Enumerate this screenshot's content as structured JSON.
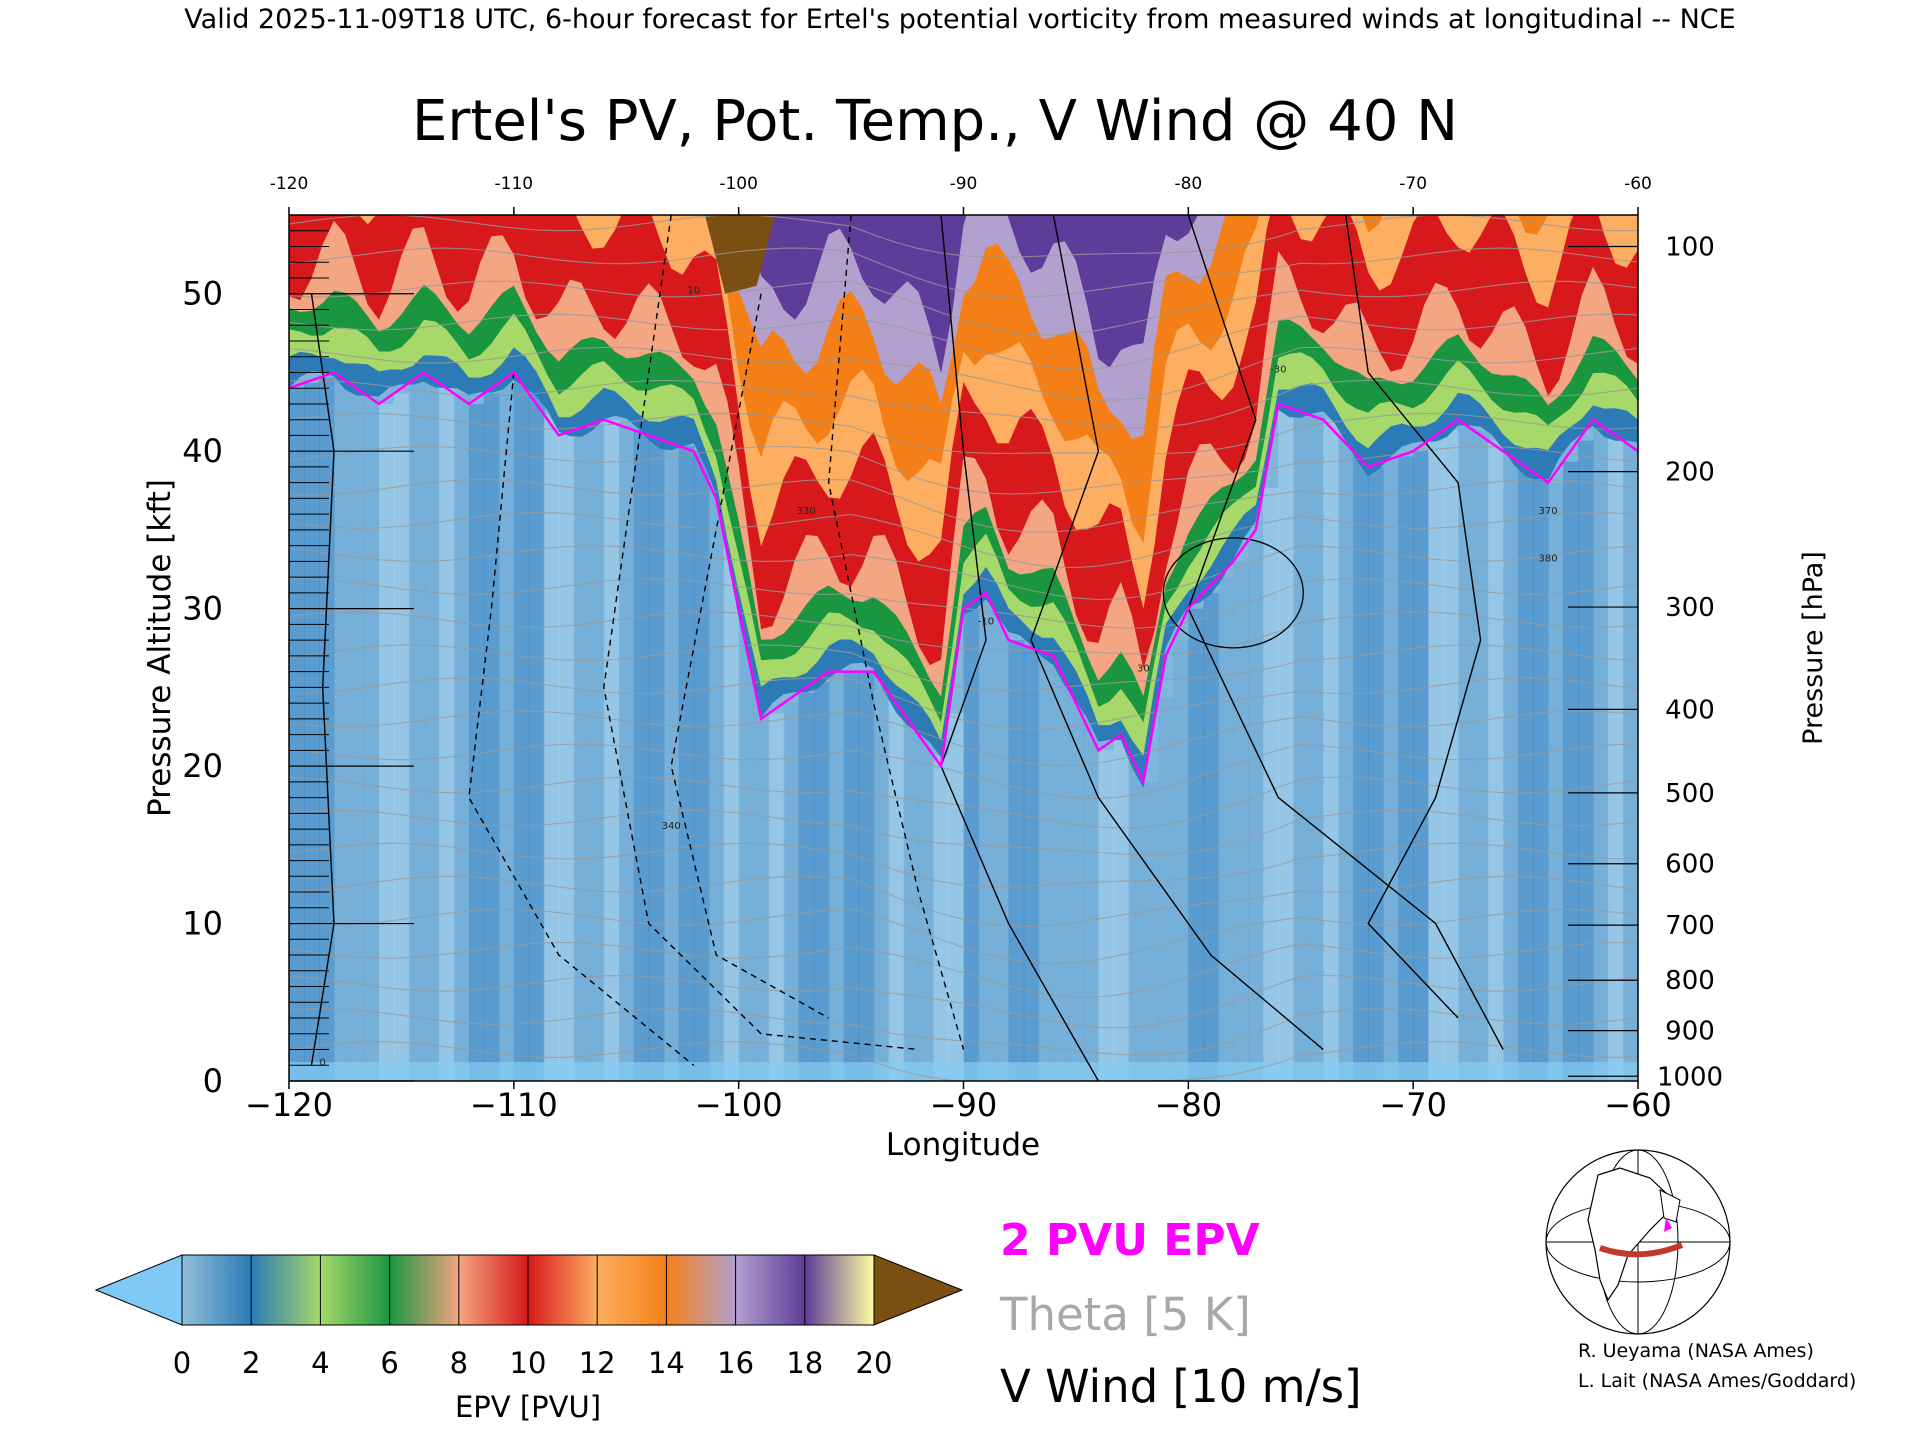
{
  "header": "Valid 2025-11-09T18 UTC, 6-hour forecast for Ertel's potential vorticity from measured winds at longitudinal -- NCE",
  "chart_data": {
    "type": "heatmap",
    "title": "Ertel's PV, Pot. Temp., V Wind @ 40 N",
    "xlabel": "Longitude",
    "ylabel_left": "Pressure Altitude [kft]",
    "ylabel_right": "Pressure [hPa]",
    "xlim": [
      -120,
      -60
    ],
    "ylim": [
      0,
      55
    ],
    "x_ticks": [
      -120,
      -110,
      -100,
      -90,
      -80,
      -70,
      -60
    ],
    "top_ticks": [
      -120,
      -110,
      -100,
      -90,
      -80,
      -70,
      -60
    ],
    "y_ticks": [
      0,
      10,
      20,
      30,
      40,
      50
    ],
    "pressure_ticks": [
      {
        "hPa": 100,
        "kft": 53.0
      },
      {
        "hPa": 200,
        "kft": 38.7
      },
      {
        "hPa": 300,
        "kft": 30.1
      },
      {
        "hPa": 400,
        "kft": 23.6
      },
      {
        "hPa": 500,
        "kft": 18.3
      },
      {
        "hPa": 600,
        "kft": 13.8
      },
      {
        "hPa": 700,
        "kft": 9.9
      },
      {
        "hPa": 800,
        "kft": 6.4
      },
      {
        "hPa": 900,
        "kft": 3.2
      },
      {
        "hPa": 1000,
        "kft": 0.3
      }
    ],
    "two_pvu_surface": {
      "lon": [
        -120,
        -118,
        -116,
        -114,
        -112,
        -110,
        -108,
        -106,
        -104,
        -102,
        -101,
        -100,
        -99,
        -98,
        -96,
        -94,
        -92,
        -91,
        -90,
        -89,
        -88,
        -86,
        -84,
        -83,
        -82,
        -81,
        -80,
        -78,
        -77,
        -76,
        -74,
        -72,
        -70,
        -68,
        -66,
        -64,
        -62,
        -60
      ],
      "kft": [
        44,
        45,
        43,
        45,
        43,
        45,
        41,
        42,
        41,
        40,
        37,
        30,
        23,
        24,
        26,
        26,
        22,
        20,
        30,
        31,
        28,
        27,
        21,
        22,
        19,
        27,
        30,
        33,
        35,
        43,
        42,
        39,
        40,
        42,
        40,
        38,
        42,
        40
      ]
    },
    "colorbar": {
      "label": "EPV [PVU]",
      "ticks": [
        0,
        2,
        4,
        6,
        8,
        10,
        12,
        14,
        16,
        18,
        20
      ],
      "colors": [
        "#91bfdb",
        "#2c7bb6",
        "#a6d96a",
        "#1a9641",
        "#f4a582",
        "#d7191c",
        "#fdae61",
        "#f57f17",
        "#b2a0cf",
        "#5e3c99",
        "#ffffa0"
      ],
      "under_color": "#80c8f5",
      "over_color": "#7b4f12"
    },
    "legend": [
      "2 PVU EPV",
      "Theta [5 K]",
      "V Wind [10 m/s]"
    ],
    "legend_colors": [
      "#ff00ff",
      "#a0a0a0",
      "#000000"
    ],
    "contour_labels": [
      "10",
      "30",
      "-10",
      "-30",
      "330",
      "340",
      "370",
      "380",
      "0"
    ]
  },
  "credits": [
    "R. Ueyama (NASA Ames)",
    "L. Lait (NASA Ames/Goddard)"
  ]
}
